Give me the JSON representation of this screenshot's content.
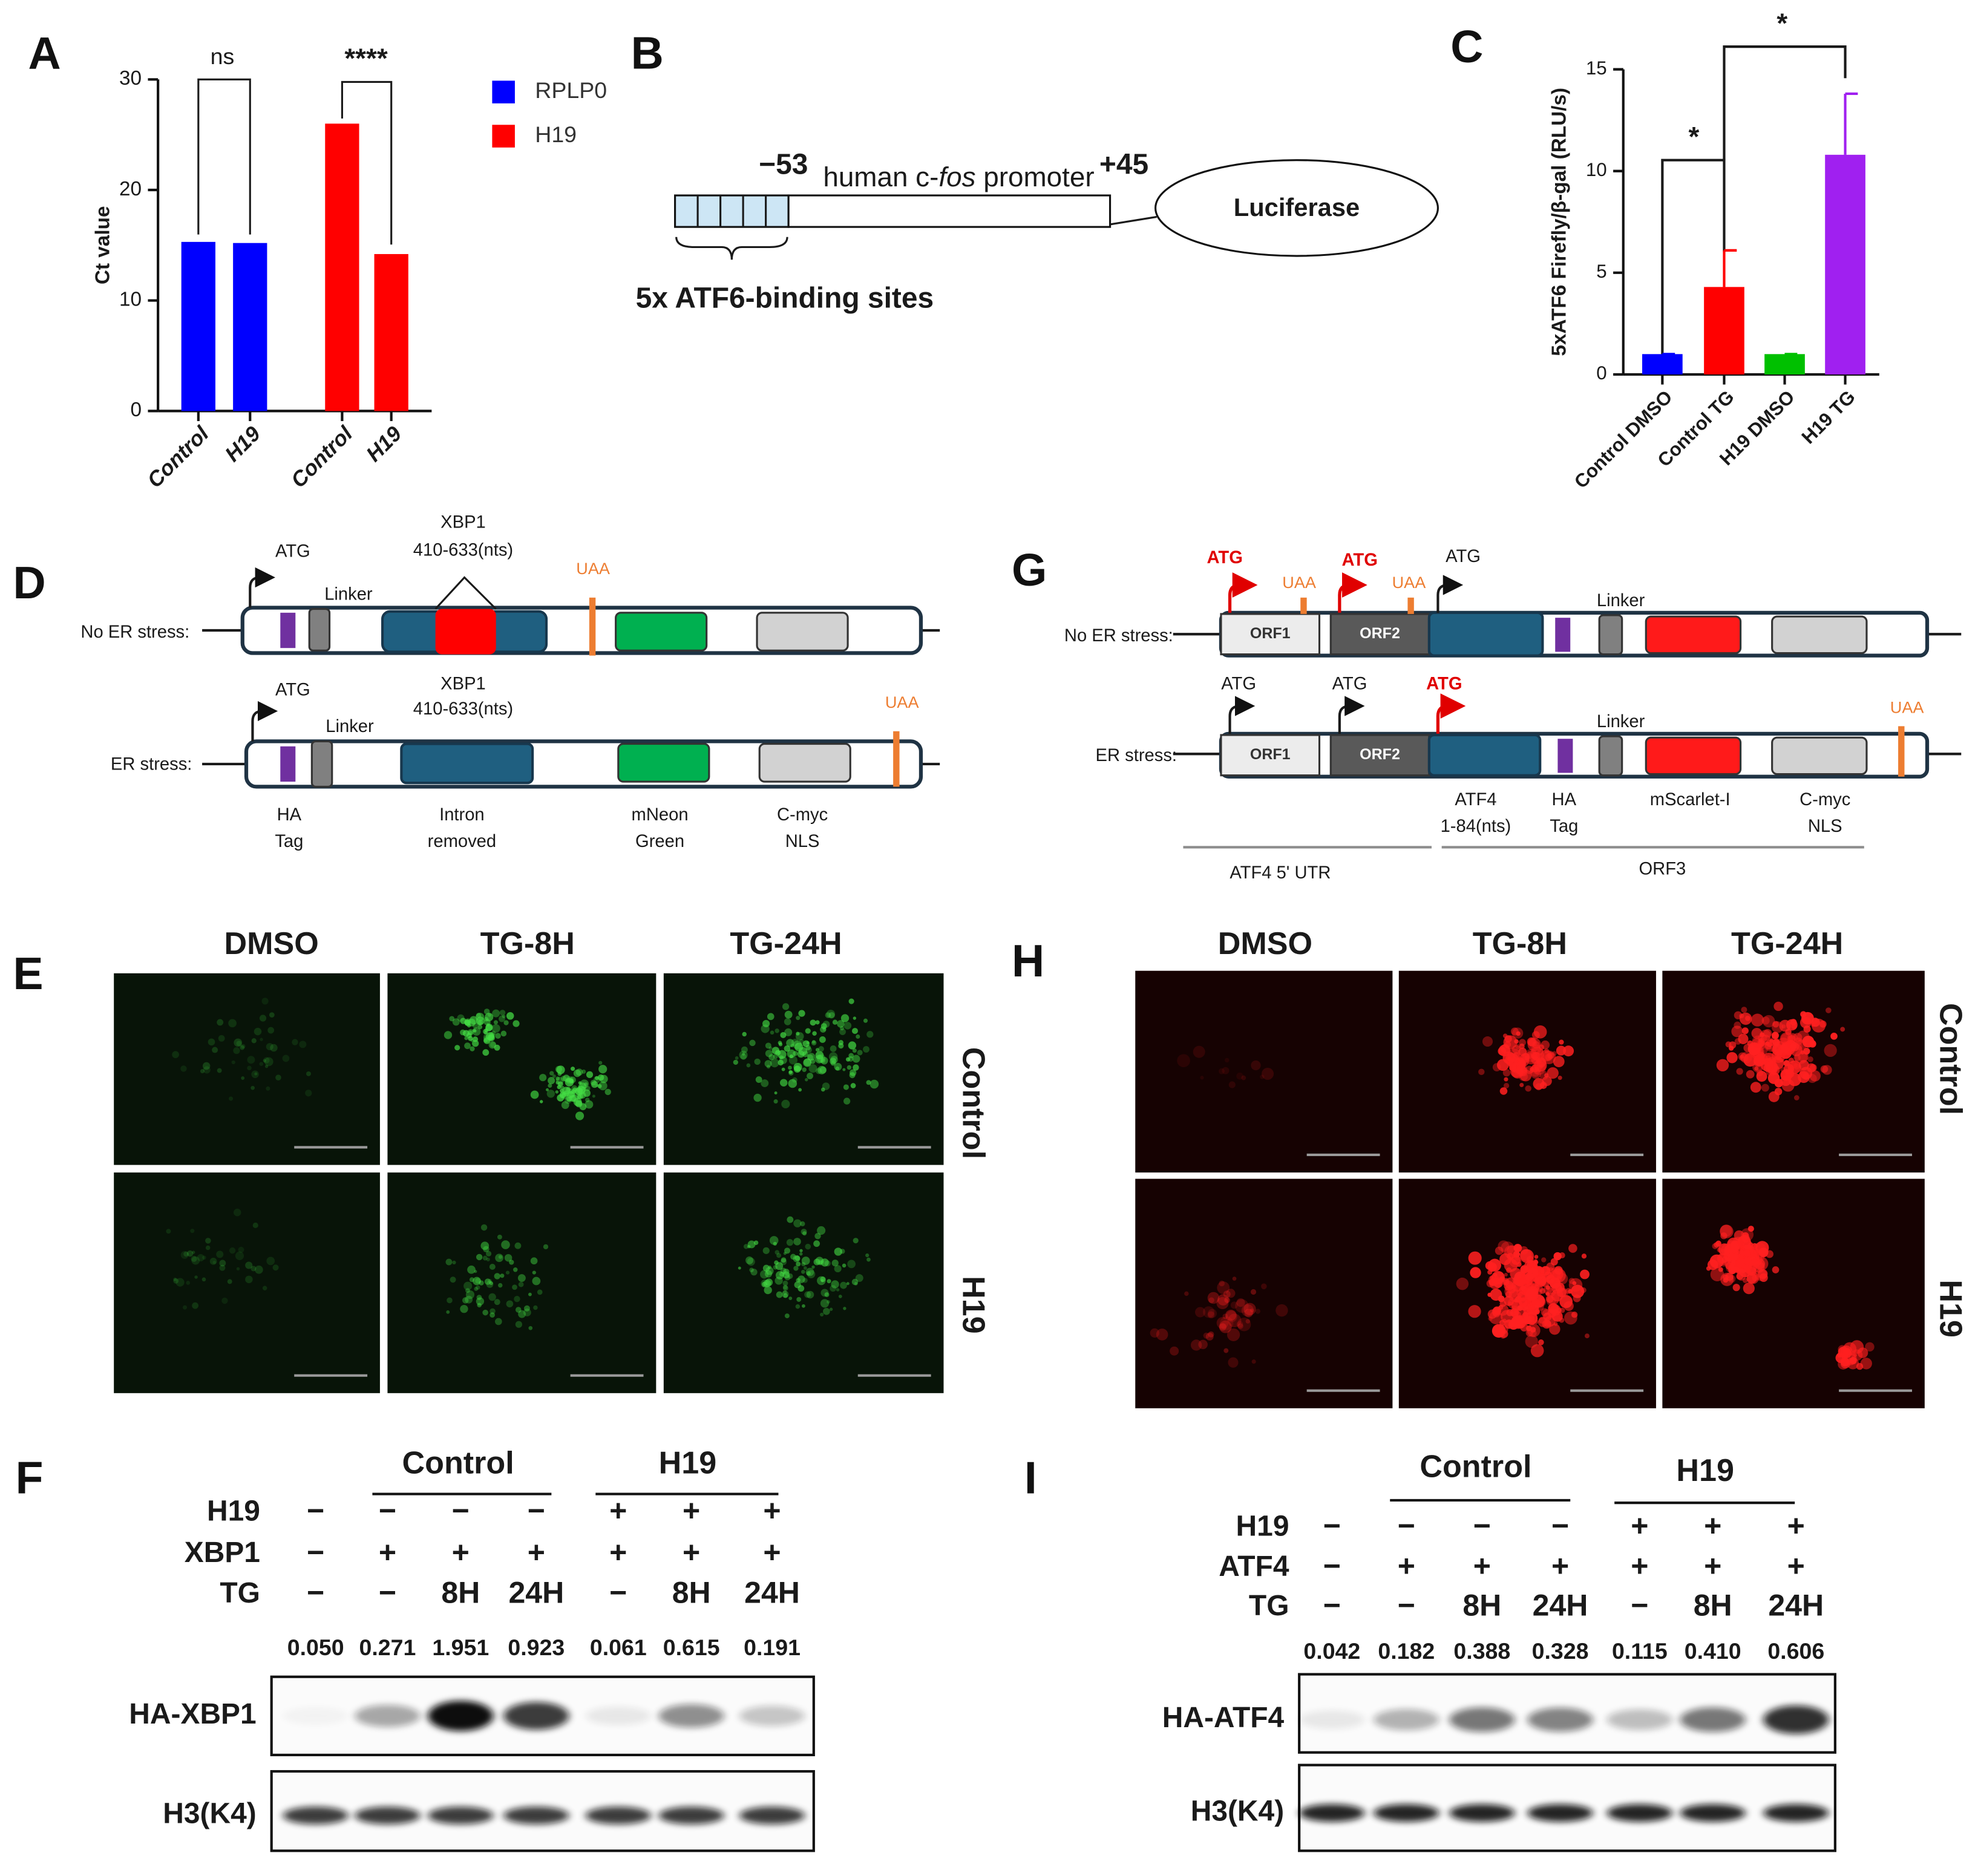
{
  "panel_labels": [
    "A",
    "B",
    "C",
    "D",
    "E",
    "F",
    "G",
    "H",
    "I"
  ],
  "chart_data": [
    {
      "type": "bar",
      "categories": [
        "Control",
        "H19",
        "Control",
        "H19"
      ],
      "series": [
        {
          "name": "RPLP0",
          "color": "#0000ff",
          "values": [
            15.3,
            15.2,
            null,
            null
          ]
        },
        {
          "name": "H19",
          "color": "#ff0000",
          "values": [
            null,
            null,
            26.0,
            14.2
          ]
        }
      ],
      "y_label": "Ct value",
      "ylim": [
        0,
        30
      ],
      "yticks": [
        0,
        10,
        20,
        30
      ],
      "annotations": [
        "ns",
        "****"
      ]
    },
    {
      "type": "bar",
      "categories": [
        "Control DMSO",
        "Control TG",
        "H19 DMSO",
        "H19 TG"
      ],
      "values": [
        1.0,
        4.3,
        1.0,
        10.8
      ],
      "errors": [
        0,
        1.8,
        0,
        3.0
      ],
      "colors": [
        "#0000ff",
        "#ff0000",
        "#00c000",
        "#a020f0"
      ],
      "y_label": "5xATF6 Firefly/β-gal (RLU/s)",
      "ylim": [
        0,
        15
      ],
      "yticks": [
        0,
        5,
        10,
        15
      ],
      "annotations": [
        "*",
        "*"
      ]
    }
  ],
  "diagram_b": {
    "site_start": "−53",
    "promoter_prefix": "human c-",
    "promoter_italic": "fos",
    "promoter_suffix": " promoter",
    "site_end": "+45",
    "reporter": "Luciferase",
    "sites_label": "5x ATF6-binding  sites"
  },
  "diagram_d": {
    "rows": [
      {
        "label": "No ER stress:",
        "start": "ATG",
        "linker": "Linker",
        "insert": [
          "XBP1",
          "410-633(nts)"
        ],
        "stop": "UAA"
      },
      {
        "label": "ER stress:",
        "start": "ATG",
        "linker": "Linker",
        "insert": [
          "XBP1",
          "410-633(nts)"
        ],
        "stop": "UAA"
      }
    ],
    "parts": [
      [
        "HA",
        "Tag"
      ],
      [
        "Intron",
        "removed"
      ],
      [
        "mNeon",
        "Green"
      ],
      [
        "C-myc",
        "NLS"
      ]
    ]
  },
  "diagram_g": {
    "rows": [
      {
        "label": "No ER stress:",
        "starts": [
          "ATG",
          "ATG",
          "ATG"
        ],
        "stops": [
          "UAA",
          "UAA"
        ],
        "orfs": [
          "ORF1",
          "ORF2"
        ],
        "linker": "Linker"
      },
      {
        "label": "ER stress:",
        "starts": [
          "ATG",
          "ATG",
          "ATG"
        ],
        "stops": [
          "UAA"
        ],
        "orfs": [
          "ORF1",
          "ORF2"
        ],
        "linker": "Linker"
      }
    ],
    "parts": [
      [
        "ATF4",
        "1-84(nts)"
      ],
      [
        "HA",
        "Tag"
      ],
      [
        "mScarlet-I"
      ],
      [
        "C-myc",
        "NLS"
      ]
    ],
    "regions": [
      "ATF4  5' UTR",
      "ORF3"
    ]
  },
  "micrographs_e": {
    "columns": [
      "DMSO",
      "TG-8H",
      "TG-24H"
    ],
    "rows": [
      "Control",
      "H19"
    ]
  },
  "micrographs_h": {
    "columns": [
      "DMSO",
      "TG-8H",
      "TG-24H"
    ],
    "rows": [
      "Control",
      "H19"
    ]
  },
  "blot_f": {
    "groups": [
      "Control",
      "H19"
    ],
    "rows": [
      {
        "label": "H19",
        "cells": [
          "−",
          "−",
          "−",
          "−",
          "+",
          "+",
          "+"
        ]
      },
      {
        "label": "XBP1",
        "cells": [
          "−",
          "+",
          "+",
          "+",
          "+",
          "+",
          "+"
        ]
      },
      {
        "label": "TG",
        "cells": [
          "−",
          "−",
          "8H",
          "24H",
          "−",
          "8H",
          "24H"
        ]
      }
    ],
    "quantification": [
      "0.050",
      "0.271",
      "1.951",
      "0.923",
      "0.061",
      "0.615",
      "0.191"
    ],
    "bands": [
      "HA-XBP1",
      "H3(K4)"
    ]
  },
  "blot_i": {
    "groups": [
      "Control",
      "H19"
    ],
    "rows": [
      {
        "label": "H19",
        "cells": [
          "−",
          "−",
          "−",
          "−",
          "+",
          "+",
          "+"
        ]
      },
      {
        "label": "ATF4",
        "cells": [
          "−",
          "+",
          "+",
          "+",
          "+",
          "+",
          "+"
        ]
      },
      {
        "label": "TG",
        "cells": [
          "−",
          "−",
          "8H",
          "24H",
          "−",
          "8H",
          "24H"
        ]
      }
    ],
    "quantification": [
      "0.042",
      "0.182",
      "0.388",
      "0.328",
      "0.115",
      "0.410",
      "0.606"
    ],
    "bands": [
      "HA-ATF4",
      "H3(K4)"
    ]
  }
}
